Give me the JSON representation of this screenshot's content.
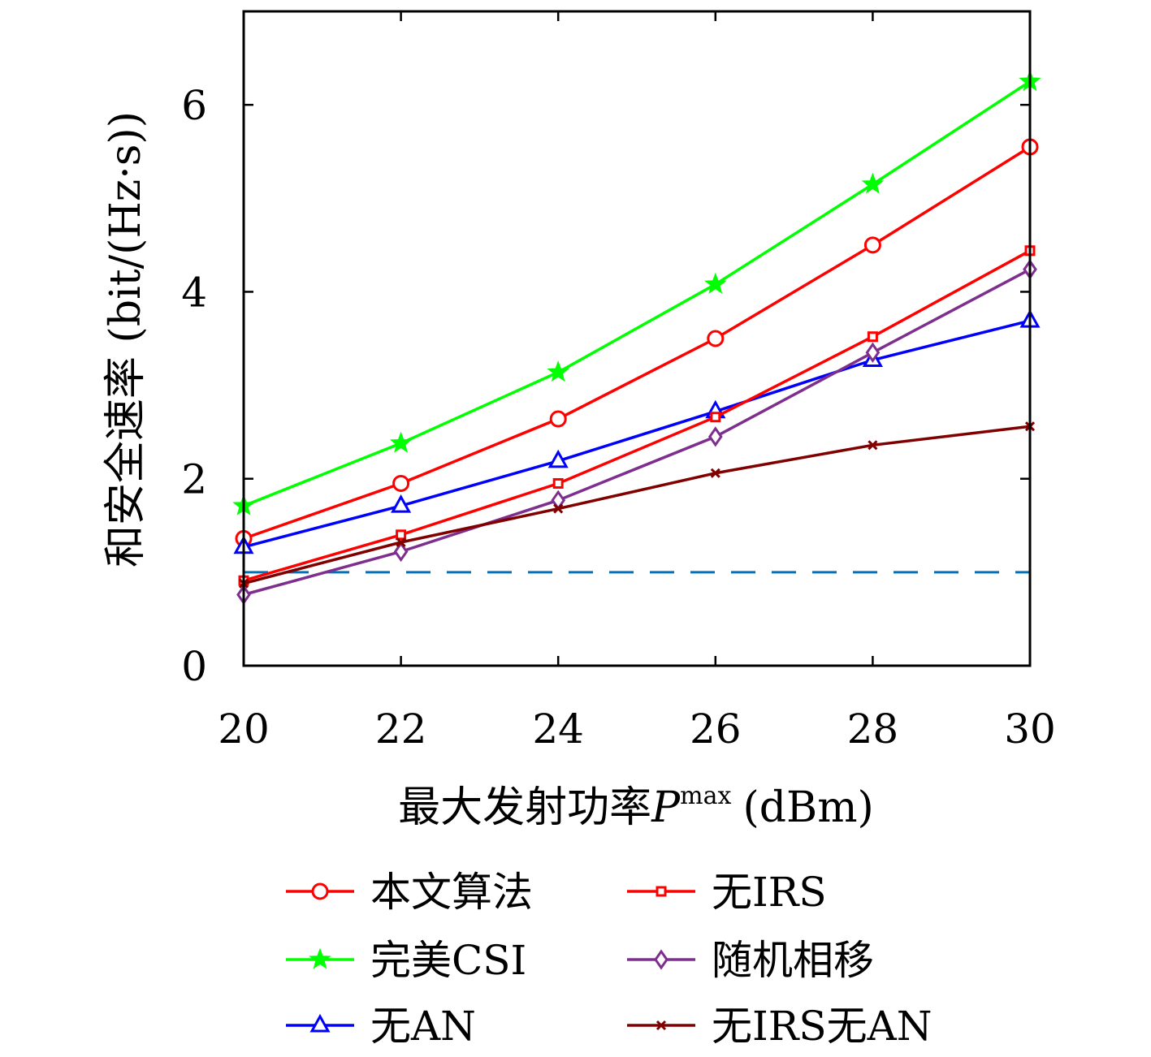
{
  "chart_data": {
    "type": "line",
    "title": "",
    "xlabel": {
      "main": "最大发射功率",
      "symbol": "P",
      "superscript": "max",
      "unit": "(dBm)"
    },
    "ylabel": "和安全速率 (bit/(Hz·s))",
    "x": [
      20,
      22,
      24,
      26,
      28,
      30
    ],
    "xlim": [
      20,
      30
    ],
    "ylim": [
      0,
      7
    ],
    "xticks": [
      "20",
      "22",
      "24",
      "26",
      "28",
      "30"
    ],
    "yticks": [
      "0",
      "2",
      "4",
      "6"
    ],
    "grid": false,
    "legend_position": "bottom",
    "series": [
      {
        "name": "本文算法",
        "color": "#ff0000",
        "marker": "circle",
        "values": [
          1.36,
          1.95,
          2.64,
          3.5,
          4.5,
          5.55
        ]
      },
      {
        "name": "完美CSI",
        "color": "#00ff00",
        "marker": "star",
        "values": [
          1.71,
          2.38,
          3.14,
          4.08,
          5.15,
          6.25
        ]
      },
      {
        "name": "无AN",
        "color": "#0000ff",
        "marker": "triangle",
        "values": [
          1.27,
          1.71,
          2.19,
          2.72,
          3.27,
          3.69
        ]
      },
      {
        "name": "无IRS",
        "color": "#ff0000",
        "marker": "square",
        "values": [
          0.91,
          1.4,
          1.95,
          2.66,
          3.52,
          4.44
        ]
      },
      {
        "name": "随机相移",
        "color": "#7e2f8e",
        "marker": "diamond",
        "values": [
          0.76,
          1.22,
          1.77,
          2.45,
          3.35,
          4.24
        ]
      },
      {
        "name": "无IRS无AN",
        "color": "#800000",
        "marker": "x",
        "values": [
          0.88,
          1.32,
          1.68,
          2.06,
          2.36,
          2.56
        ]
      }
    ],
    "reference_line": {
      "value": 1.0,
      "color": "#0072bd",
      "style": "dashed"
    }
  }
}
